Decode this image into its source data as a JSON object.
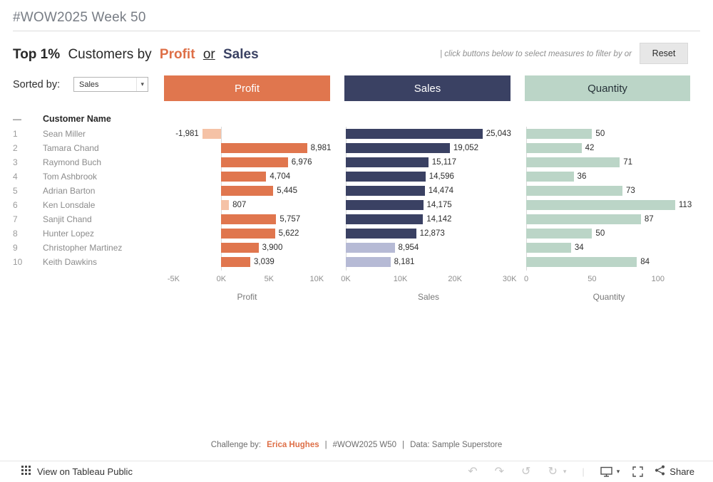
{
  "header": {
    "title": "#WOW2025 Week 50"
  },
  "heading": {
    "bold": "Top 1%",
    "normal": "Customers by",
    "profit_word": "Profit",
    "or_word": "or",
    "sales_word": "Sales"
  },
  "hint": "| click buttons below to select measures to filter by or",
  "reset_button": "Reset",
  "sort": {
    "label": "Sorted by:",
    "value": "Sales"
  },
  "icons": {
    "caret_down": "▾"
  },
  "measure_buttons": [
    {
      "label": "Profit",
      "bg": "#E0764E",
      "fg": "#FFFFFF"
    },
    {
      "label": "Sales",
      "bg": "#3A4163",
      "fg": "#FFFFFF"
    },
    {
      "label": "Quantity",
      "bg": "#BBD5C7",
      "fg": "#263238"
    }
  ],
  "table": {
    "rank_header": "—",
    "name_header": "Customer Name",
    "rows": [
      {
        "rank": "1",
        "name": "Sean Miller"
      },
      {
        "rank": "2",
        "name": "Tamara Chand"
      },
      {
        "rank": "3",
        "name": "Raymond Buch"
      },
      {
        "rank": "4",
        "name": "Tom Ashbrook"
      },
      {
        "rank": "5",
        "name": "Adrian Barton"
      },
      {
        "rank": "6",
        "name": "Ken Lonsdale"
      },
      {
        "rank": "7",
        "name": "Sanjit Chand"
      },
      {
        "rank": "8",
        "name": "Hunter Lopez"
      },
      {
        "rank": "9",
        "name": "Christopher Martinez"
      },
      {
        "rank": "10",
        "name": "Keith Dawkins"
      }
    ]
  },
  "chart_data": {
    "type": "bar",
    "orientation": "horizontal",
    "categories": [
      "Sean Miller",
      "Tamara Chand",
      "Raymond Buch",
      "Tom Ashbrook",
      "Adrian Barton",
      "Ken Lonsdale",
      "Sanjit Chand",
      "Hunter Lopez",
      "Christopher Martinez",
      "Keith Dawkins"
    ],
    "series": [
      {
        "key": "profit",
        "name": "Profit",
        "values": [
          -1981,
          8981,
          6976,
          4704,
          5445,
          807,
          5757,
          5622,
          3900,
          3039
        ],
        "labels": [
          "-1,981",
          "8,981",
          "6,976",
          "4,704",
          "5,445",
          "807",
          "5,757",
          "5,622",
          "3,900",
          "3,039"
        ],
        "xlim": [
          -6000,
          11400
        ],
        "ticks": [
          {
            "v": -5000,
            "label": "-5K"
          },
          {
            "v": 0,
            "label": "0K"
          },
          {
            "v": 5000,
            "label": "5K"
          },
          {
            "v": 10000,
            "label": "10K"
          }
        ],
        "xlabel": "Profit",
        "color": "#E0764E",
        "muted_color": "#F5C2A6",
        "muted_indices": [
          0,
          5
        ]
      },
      {
        "key": "sales",
        "name": "Sales",
        "values": [
          25043,
          19052,
          15117,
          14596,
          14474,
          14175,
          14142,
          12873,
          8954,
          8181
        ],
        "labels": [
          "25,043",
          "19,052",
          "15,117",
          "14,596",
          "14,474",
          "14,175",
          "14,142",
          "12,873",
          "8,954",
          "8,181"
        ],
        "xlim": [
          0,
          30300
        ],
        "ticks": [
          {
            "v": 0,
            "label": "0K"
          },
          {
            "v": 10000,
            "label": "10K"
          },
          {
            "v": 20000,
            "label": "20K"
          },
          {
            "v": 30000,
            "label": "30K"
          }
        ],
        "xlabel": "Sales",
        "color": "#3A4163",
        "muted_color": "#B6BAD5",
        "muted_indices": [
          8,
          9
        ]
      },
      {
        "key": "quantity",
        "name": "Quantity",
        "values": [
          50,
          42,
          71,
          36,
          73,
          113,
          87,
          50,
          34,
          84
        ],
        "labels": [
          "50",
          "42",
          "71",
          "36",
          "73",
          "113",
          "87",
          "50",
          "34",
          "84"
        ],
        "xlim": [
          0,
          125.5
        ],
        "ticks": [
          {
            "v": 0,
            "label": "0"
          },
          {
            "v": 50,
            "label": "50"
          },
          {
            "v": 100,
            "label": "100"
          }
        ],
        "xlabel": "Quantity",
        "color": "#BBD5C7",
        "muted_color": "#BBD5C7",
        "muted_indices": []
      }
    ]
  },
  "footer": {
    "prefix": "Challenge by:",
    "author": "Erica Hughes",
    "sep": "|",
    "tag": "#WOW2025 W50",
    "source": "Data: Sample Superstore"
  },
  "toolbar": {
    "view_label": "View on Tableau Public",
    "share_label": "Share",
    "icons": {
      "undo": "↶",
      "redo": "↷",
      "revert": "↺",
      "refresh": "↻",
      "separator": "|"
    }
  },
  "colors": {
    "profit_accent": "#DE6F47",
    "sales_accent": "#3A4163"
  }
}
